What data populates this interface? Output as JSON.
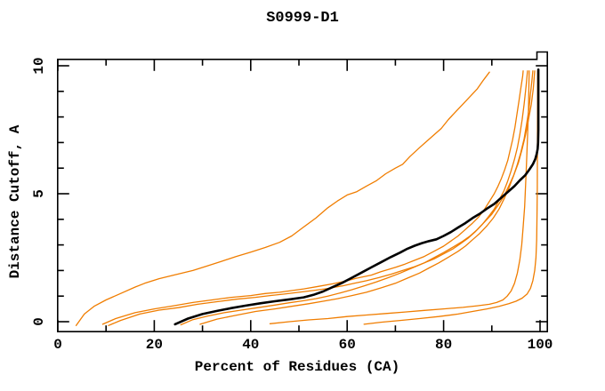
{
  "chart_data": {
    "type": "line",
    "title": "S0999-D1",
    "xlabel": "Percent of Residues (CA)",
    "ylabel": "Distance Cutoff, A",
    "xlim": [
      0,
      101.5
    ],
    "ylim": [
      -0.4,
      10.7
    ],
    "grid": false,
    "legend": "none",
    "x_ticks_major": [
      0,
      20,
      40,
      60,
      80,
      100
    ],
    "x_ticks_minor": [
      10,
      30,
      50,
      70,
      90
    ],
    "x_tick_labels": [
      "0",
      "20",
      "40",
      "60",
      "80",
      "100"
    ],
    "y_ticks_major": [
      0,
      5,
      10
    ],
    "y_ticks_minor": [
      1,
      2,
      3,
      4,
      6,
      7,
      8,
      9
    ],
    "y_tick_labels": [
      "0",
      "5",
      "10"
    ],
    "colors": {
      "model_orange": "#f07d00",
      "reference_black": "#000000",
      "frame": "#000000"
    },
    "series": [
      {
        "name": "orange-1",
        "color": "#f07d00",
        "width": 1.3,
        "points": [
          [
            3.8,
            -0.15
          ],
          [
            5.5,
            0.3
          ],
          [
            7.5,
            0.6
          ],
          [
            10,
            0.85
          ],
          [
            13,
            1.1
          ],
          [
            16,
            1.35
          ],
          [
            18,
            1.5
          ],
          [
            21,
            1.68
          ],
          [
            24,
            1.82
          ],
          [
            28,
            2.0
          ],
          [
            31,
            2.18
          ],
          [
            34,
            2.36
          ],
          [
            37,
            2.55
          ],
          [
            40,
            2.72
          ],
          [
            43,
            2.9
          ],
          [
            46,
            3.1
          ],
          [
            48.5,
            3.35
          ],
          [
            51,
            3.7
          ],
          [
            53.5,
            4.05
          ],
          [
            56,
            4.45
          ],
          [
            58,
            4.72
          ],
          [
            60,
            4.95
          ],
          [
            62,
            5.08
          ],
          [
            64,
            5.3
          ],
          [
            66,
            5.5
          ],
          [
            68,
            5.78
          ],
          [
            70,
            6.0
          ],
          [
            71.5,
            6.15
          ],
          [
            73,
            6.45
          ],
          [
            75,
            6.8
          ],
          [
            76.5,
            7.05
          ],
          [
            78,
            7.3
          ],
          [
            79.5,
            7.55
          ],
          [
            81,
            7.9
          ],
          [
            82.5,
            8.2
          ],
          [
            84,
            8.5
          ],
          [
            85.5,
            8.8
          ],
          [
            87,
            9.1
          ],
          [
            88.3,
            9.45
          ],
          [
            89.5,
            9.75
          ]
        ]
      },
      {
        "name": "orange-2",
        "color": "#f07d00",
        "width": 1.3,
        "points": [
          [
            9.3,
            -0.1
          ],
          [
            12,
            0.12
          ],
          [
            16,
            0.35
          ],
          [
            20,
            0.5
          ],
          [
            24,
            0.62
          ],
          [
            28,
            0.75
          ],
          [
            32,
            0.85
          ],
          [
            36,
            0.95
          ],
          [
            40,
            1.02
          ],
          [
            43,
            1.1
          ],
          [
            46,
            1.15
          ],
          [
            51,
            1.28
          ],
          [
            54,
            1.38
          ],
          [
            57,
            1.48
          ],
          [
            60,
            1.6
          ],
          [
            62,
            1.7
          ],
          [
            65,
            1.82
          ],
          [
            67,
            1.95
          ],
          [
            70,
            2.12
          ],
          [
            72,
            2.25
          ],
          [
            74,
            2.4
          ],
          [
            76,
            2.55
          ],
          [
            78,
            2.75
          ],
          [
            80,
            2.95
          ],
          [
            81.5,
            3.15
          ],
          [
            83,
            3.35
          ],
          [
            84.5,
            3.6
          ],
          [
            86,
            3.85
          ],
          [
            87.3,
            4.1
          ],
          [
            88.5,
            4.4
          ],
          [
            89.5,
            4.7
          ],
          [
            90.5,
            5.0
          ],
          [
            91.3,
            5.3
          ],
          [
            92,
            5.6
          ],
          [
            92.7,
            5.95
          ],
          [
            93.3,
            6.3
          ],
          [
            93.8,
            6.7
          ],
          [
            94.3,
            7.1
          ],
          [
            94.8,
            7.6
          ],
          [
            95.2,
            8.1
          ],
          [
            95.6,
            8.6
          ],
          [
            96,
            9.1
          ],
          [
            96.4,
            9.6
          ],
          [
            96.5,
            9.8
          ]
        ]
      },
      {
        "name": "orange-3",
        "color": "#f07d00",
        "width": 1.3,
        "points": [
          [
            10.5,
            -0.15
          ],
          [
            13,
            0.05
          ],
          [
            17,
            0.3
          ],
          [
            21,
            0.45
          ],
          [
            25,
            0.55
          ],
          [
            29,
            0.68
          ],
          [
            33,
            0.78
          ],
          [
            37,
            0.88
          ],
          [
            41,
            0.95
          ],
          [
            44,
            1.02
          ],
          [
            47,
            1.08
          ],
          [
            50,
            1.15
          ],
          [
            53,
            1.22
          ],
          [
            56,
            1.3
          ],
          [
            59,
            1.4
          ],
          [
            61.5,
            1.5
          ],
          [
            64,
            1.6
          ],
          [
            66.5,
            1.72
          ],
          [
            69,
            1.85
          ],
          [
            71.5,
            2.0
          ],
          [
            74,
            2.15
          ],
          [
            76,
            2.3
          ],
          [
            78,
            2.45
          ],
          [
            80,
            2.65
          ],
          [
            82,
            2.85
          ],
          [
            83.5,
            3.05
          ],
          [
            85,
            3.25
          ],
          [
            86.5,
            3.5
          ],
          [
            88,
            3.8
          ],
          [
            89.3,
            4.1
          ],
          [
            90.5,
            4.4
          ],
          [
            91.5,
            4.75
          ],
          [
            92.5,
            5.1
          ],
          [
            93.3,
            5.5
          ],
          [
            94,
            5.9
          ],
          [
            94.7,
            6.35
          ],
          [
            95.3,
            6.8
          ],
          [
            95.8,
            7.3
          ],
          [
            96.3,
            7.9
          ],
          [
            96.7,
            8.5
          ],
          [
            97.1,
            9.2
          ],
          [
            97.4,
            9.8
          ]
        ]
      },
      {
        "name": "orange-4",
        "color": "#f07d00",
        "width": 1.3,
        "points": [
          [
            25.5,
            -0.12
          ],
          [
            28,
            0.08
          ],
          [
            31,
            0.22
          ],
          [
            34.5,
            0.35
          ],
          [
            38,
            0.45
          ],
          [
            41.5,
            0.55
          ],
          [
            45,
            0.65
          ],
          [
            48,
            0.74
          ],
          [
            51,
            0.82
          ],
          [
            53.5,
            0.9
          ],
          [
            56,
            1.0
          ],
          [
            58.5,
            1.12
          ],
          [
            61,
            1.25
          ],
          [
            63.5,
            1.4
          ],
          [
            66,
            1.55
          ],
          [
            68.5,
            1.72
          ],
          [
            71,
            1.9
          ],
          [
            73.5,
            2.1
          ],
          [
            76,
            2.3
          ],
          [
            78,
            2.5
          ],
          [
            80,
            2.7
          ],
          [
            82,
            2.92
          ],
          [
            84,
            3.15
          ],
          [
            85.5,
            3.35
          ],
          [
            87,
            3.6
          ],
          [
            88.5,
            3.9
          ],
          [
            90,
            4.2
          ],
          [
            91.3,
            4.55
          ],
          [
            92.5,
            4.9
          ],
          [
            93.5,
            5.3
          ],
          [
            94.5,
            5.7
          ],
          [
            95.3,
            6.15
          ],
          [
            96,
            6.6
          ],
          [
            96.7,
            7.15
          ],
          [
            97.2,
            7.7
          ],
          [
            97.7,
            8.3
          ],
          [
            98,
            8.9
          ],
          [
            98.3,
            9.4
          ],
          [
            98.5,
            9.8
          ]
        ]
      },
      {
        "name": "orange-5",
        "color": "#f07d00",
        "width": 1.3,
        "points": [
          [
            29.5,
            -0.1
          ],
          [
            33,
            0.1
          ],
          [
            37,
            0.25
          ],
          [
            41,
            0.4
          ],
          [
            45,
            0.5
          ],
          [
            48.5,
            0.6
          ],
          [
            52,
            0.7
          ],
          [
            55,
            0.8
          ],
          [
            58,
            0.9
          ],
          [
            61,
            1.02
          ],
          [
            64,
            1.15
          ],
          [
            67,
            1.32
          ],
          [
            70,
            1.5
          ],
          [
            72.5,
            1.7
          ],
          [
            75,
            1.9
          ],
          [
            77,
            2.1
          ],
          [
            79,
            2.3
          ],
          [
            81,
            2.52
          ],
          [
            83,
            2.75
          ],
          [
            84.5,
            2.95
          ],
          [
            86,
            3.2
          ],
          [
            87.5,
            3.45
          ],
          [
            89,
            3.75
          ],
          [
            90.3,
            4.05
          ],
          [
            91.5,
            4.4
          ],
          [
            92.5,
            4.78
          ],
          [
            93.5,
            5.2
          ],
          [
            94.5,
            5.7
          ],
          [
            95.5,
            6.2
          ],
          [
            96.3,
            6.75
          ],
          [
            97,
            7.3
          ],
          [
            97.6,
            7.9
          ],
          [
            98.2,
            8.5
          ],
          [
            98.6,
            9.1
          ],
          [
            98.9,
            9.8
          ]
        ]
      },
      {
        "name": "orange-6",
        "color": "#f07d00",
        "width": 1.3,
        "points": [
          [
            44,
            -0.08
          ],
          [
            48,
            0.0
          ],
          [
            52,
            0.07
          ],
          [
            56,
            0.12
          ],
          [
            60,
            0.2
          ],
          [
            64,
            0.26
          ],
          [
            68,
            0.32
          ],
          [
            72,
            0.38
          ],
          [
            76,
            0.44
          ],
          [
            80,
            0.5
          ],
          [
            84,
            0.56
          ],
          [
            87,
            0.62
          ],
          [
            89.5,
            0.68
          ],
          [
            91,
            0.75
          ],
          [
            92.3,
            0.85
          ],
          [
            93.2,
            1.0
          ],
          [
            94,
            1.2
          ],
          [
            94.7,
            1.5
          ],
          [
            95.3,
            1.9
          ],
          [
            95.8,
            2.4
          ],
          [
            96.2,
            3.0
          ],
          [
            96.5,
            3.7
          ],
          [
            96.8,
            4.5
          ],
          [
            97,
            5.3
          ],
          [
            97.2,
            6.2
          ],
          [
            97.4,
            7.2
          ],
          [
            97.6,
            8.3
          ],
          [
            97.7,
            9.3
          ],
          [
            97.75,
            9.8
          ]
        ]
      },
      {
        "name": "orange-7",
        "color": "#f07d00",
        "width": 1.3,
        "points": [
          [
            63.5,
            -0.1
          ],
          [
            67,
            -0.02
          ],
          [
            71,
            0.05
          ],
          [
            75,
            0.12
          ],
          [
            79,
            0.2
          ],
          [
            83,
            0.3
          ],
          [
            86,
            0.4
          ],
          [
            89,
            0.5
          ],
          [
            91.5,
            0.6
          ],
          [
            93.5,
            0.7
          ],
          [
            95,
            0.8
          ],
          [
            96.3,
            0.92
          ],
          [
            97.3,
            1.08
          ],
          [
            98,
            1.3
          ],
          [
            98.5,
            1.6
          ],
          [
            98.9,
            2.0
          ],
          [
            99.15,
            2.5
          ],
          [
            99.3,
            3.2
          ],
          [
            99.38,
            4.2
          ],
          [
            99.42,
            5.2
          ],
          [
            99.45,
            6.4
          ],
          [
            99.47,
            7.6
          ],
          [
            99.5,
            9.8
          ]
        ]
      },
      {
        "name": "black-main",
        "color": "#000000",
        "width": 2.6,
        "points": [
          [
            24.3,
            -0.1
          ],
          [
            27,
            0.12
          ],
          [
            30,
            0.3
          ],
          [
            33,
            0.42
          ],
          [
            36,
            0.53
          ],
          [
            39,
            0.63
          ],
          [
            42,
            0.72
          ],
          [
            45,
            0.8
          ],
          [
            48,
            0.87
          ],
          [
            51,
            0.95
          ],
          [
            53,
            1.05
          ],
          [
            55,
            1.18
          ],
          [
            57,
            1.35
          ],
          [
            59,
            1.52
          ],
          [
            61,
            1.72
          ],
          [
            63,
            1.92
          ],
          [
            65,
            2.12
          ],
          [
            67,
            2.32
          ],
          [
            69,
            2.52
          ],
          [
            71,
            2.7
          ],
          [
            72.5,
            2.85
          ],
          [
            74,
            2.97
          ],
          [
            75.5,
            3.07
          ],
          [
            77,
            3.15
          ],
          [
            78.5,
            3.22
          ],
          [
            80,
            3.35
          ],
          [
            81.5,
            3.5
          ],
          [
            83,
            3.68
          ],
          [
            84.5,
            3.85
          ],
          [
            86,
            4.05
          ],
          [
            87.5,
            4.22
          ],
          [
            89,
            4.42
          ],
          [
            90.5,
            4.6
          ],
          [
            92,
            4.85
          ],
          [
            93.5,
            5.1
          ],
          [
            94.7,
            5.3
          ],
          [
            95.8,
            5.52
          ],
          [
            96.9,
            5.72
          ],
          [
            97.8,
            5.95
          ],
          [
            98.5,
            6.15
          ],
          [
            99,
            6.35
          ],
          [
            99.3,
            6.55
          ],
          [
            99.5,
            6.75
          ],
          [
            99.6,
            7.0
          ],
          [
            99.65,
            7.5
          ],
          [
            99.65,
            9.85
          ]
        ]
      }
    ]
  }
}
